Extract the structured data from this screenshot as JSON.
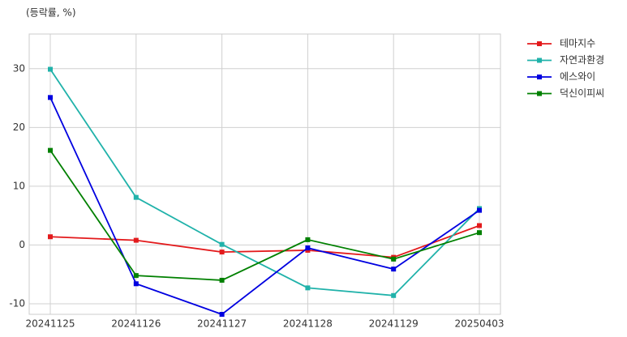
{
  "chart_data": {
    "type": "line",
    "y_label": "(등락률, %)",
    "categories": [
      "20241125",
      "20241126",
      "20241127",
      "20241128",
      "20241129",
      "20250403"
    ],
    "series": [
      {
        "name": "테마지수",
        "color": "#e31a1c",
        "values": [
          1.4,
          0.8,
          -1.2,
          -0.9,
          -2.1,
          3.3
        ]
      },
      {
        "name": "자연과환경",
        "color": "#20b2aa",
        "values": [
          29.9,
          8.1,
          0.1,
          -7.3,
          -8.6,
          6.2
        ]
      },
      {
        "name": "에스와이",
        "color": "#0000e0",
        "values": [
          25.1,
          -6.6,
          -11.8,
          -0.5,
          -4.1,
          5.9
        ]
      },
      {
        "name": "덕신이피씨",
        "color": "#008000",
        "values": [
          16.1,
          -5.2,
          -6.0,
          0.9,
          -2.4,
          2.1
        ]
      }
    ],
    "ylim": [
      -11.8,
      35.9
    ],
    "yticks": [
      -10,
      0,
      10,
      20,
      30
    ],
    "grid": true,
    "legend": "outside-right"
  }
}
